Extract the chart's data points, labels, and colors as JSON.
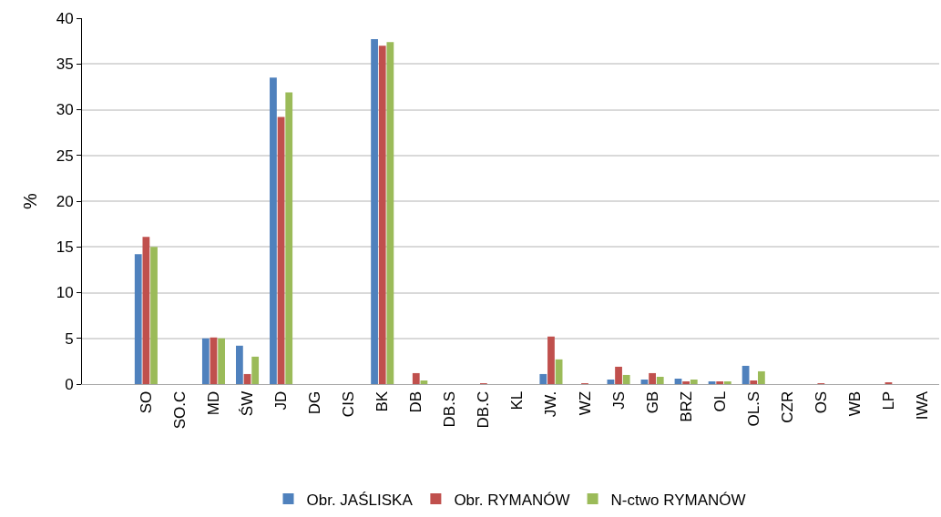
{
  "chart_data": {
    "type": "bar",
    "ylabel": "%",
    "categories": [
      "SO",
      "SO.C",
      "MD",
      "ŚW",
      "JD",
      "DG",
      "CIS",
      "BK",
      "DB",
      "DB.S",
      "DB.C",
      "KL",
      "JW.",
      "WZ",
      "JS",
      "GB",
      "BRZ",
      "OL",
      "OL.S",
      "CZR",
      "OS",
      "WB",
      "LP",
      "IWA"
    ],
    "series": [
      {
        "name": "Obr. JAŚLISKA",
        "color": "#4f81bd",
        "values": [
          14.2,
          0,
          5.0,
          4.2,
          33.5,
          0,
          0,
          37.7,
          0,
          0,
          0,
          0,
          1.1,
          0,
          0.5,
          0.5,
          0.6,
          0.3,
          2.0,
          0,
          0,
          0,
          0,
          0
        ]
      },
      {
        "name": "Obr. RYMANÓW",
        "color": "#c0504d",
        "values": [
          16.1,
          0,
          5.1,
          1.1,
          29.2,
          0,
          0,
          37.0,
          1.2,
          0,
          0.1,
          0,
          5.2,
          0.1,
          1.9,
          1.2,
          0.3,
          0.3,
          0.4,
          0,
          0.1,
          0,
          0.2,
          0
        ]
      },
      {
        "name": "N-ctwo RYMANÓW",
        "color": "#9bbb59",
        "values": [
          15.0,
          0,
          5.0,
          3.0,
          31.9,
          0,
          0,
          37.4,
          0.4,
          0,
          0,
          0,
          2.7,
          0,
          1.0,
          0.8,
          0.5,
          0.3,
          1.4,
          0,
          0,
          0,
          0,
          0
        ]
      }
    ],
    "ylim": [
      0,
      40
    ],
    "yticks": [
      0,
      5,
      10,
      15,
      20,
      25,
      30,
      35,
      40
    ],
    "grid": "y",
    "legend": "bottom"
  }
}
